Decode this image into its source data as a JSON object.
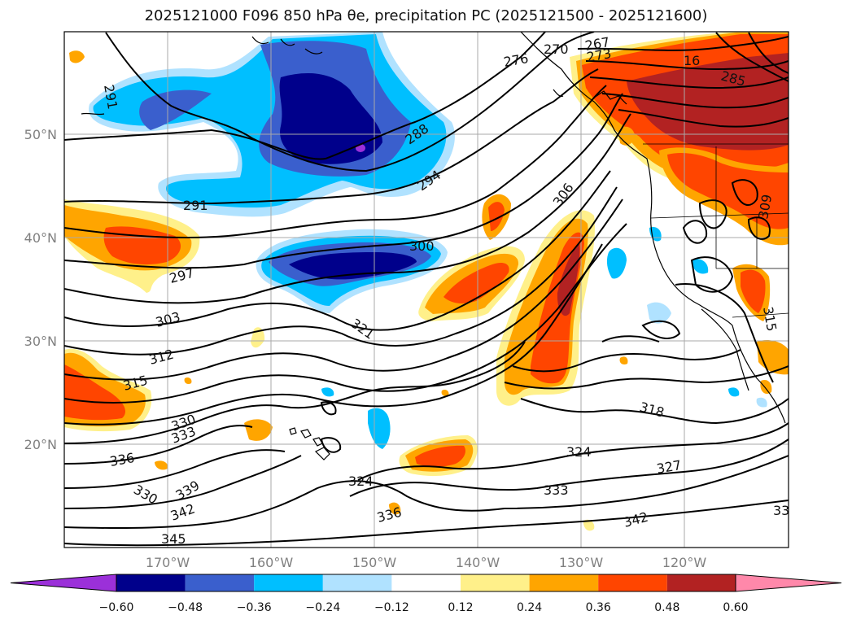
{
  "title": "2025121000 F096 850 hPa θe, precipitation PC (2025121500 - 2025121600)",
  "lat_labels": [
    "50°N",
    "40°N",
    "30°N",
    "20°N"
  ],
  "lon_labels": [
    "170°W",
    "160°W",
    "150°W",
    "140°W",
    "130°W",
    "120°W"
  ],
  "colorbar": {
    "colors": [
      "#9b30d9",
      "#00008b",
      "#3a5fcd",
      "#00bfff",
      "#b0e2ff",
      "#ffffff",
      "#fff08a",
      "#ffa500",
      "#ff4500",
      "#b22222",
      "#ff88aa"
    ],
    "ticks": [
      "−0.60",
      "−0.48",
      "−0.36",
      "−0.24",
      "−0.12",
      "0.12",
      "0.24",
      "0.36",
      "0.48",
      "0.60"
    ]
  },
  "contour_labels": [
    "291",
    "288",
    "294",
    "291",
    "297",
    "300",
    "306",
    "303",
    "321",
    "312",
    "315",
    "330",
    "333",
    "336",
    "330",
    "339",
    "342",
    "345",
    "324",
    "336",
    "318",
    "324",
    "327",
    "333",
    "342",
    "33",
    "285",
    "276",
    "270",
    "267",
    "273",
    "309",
    "315",
    "16"
  ]
}
